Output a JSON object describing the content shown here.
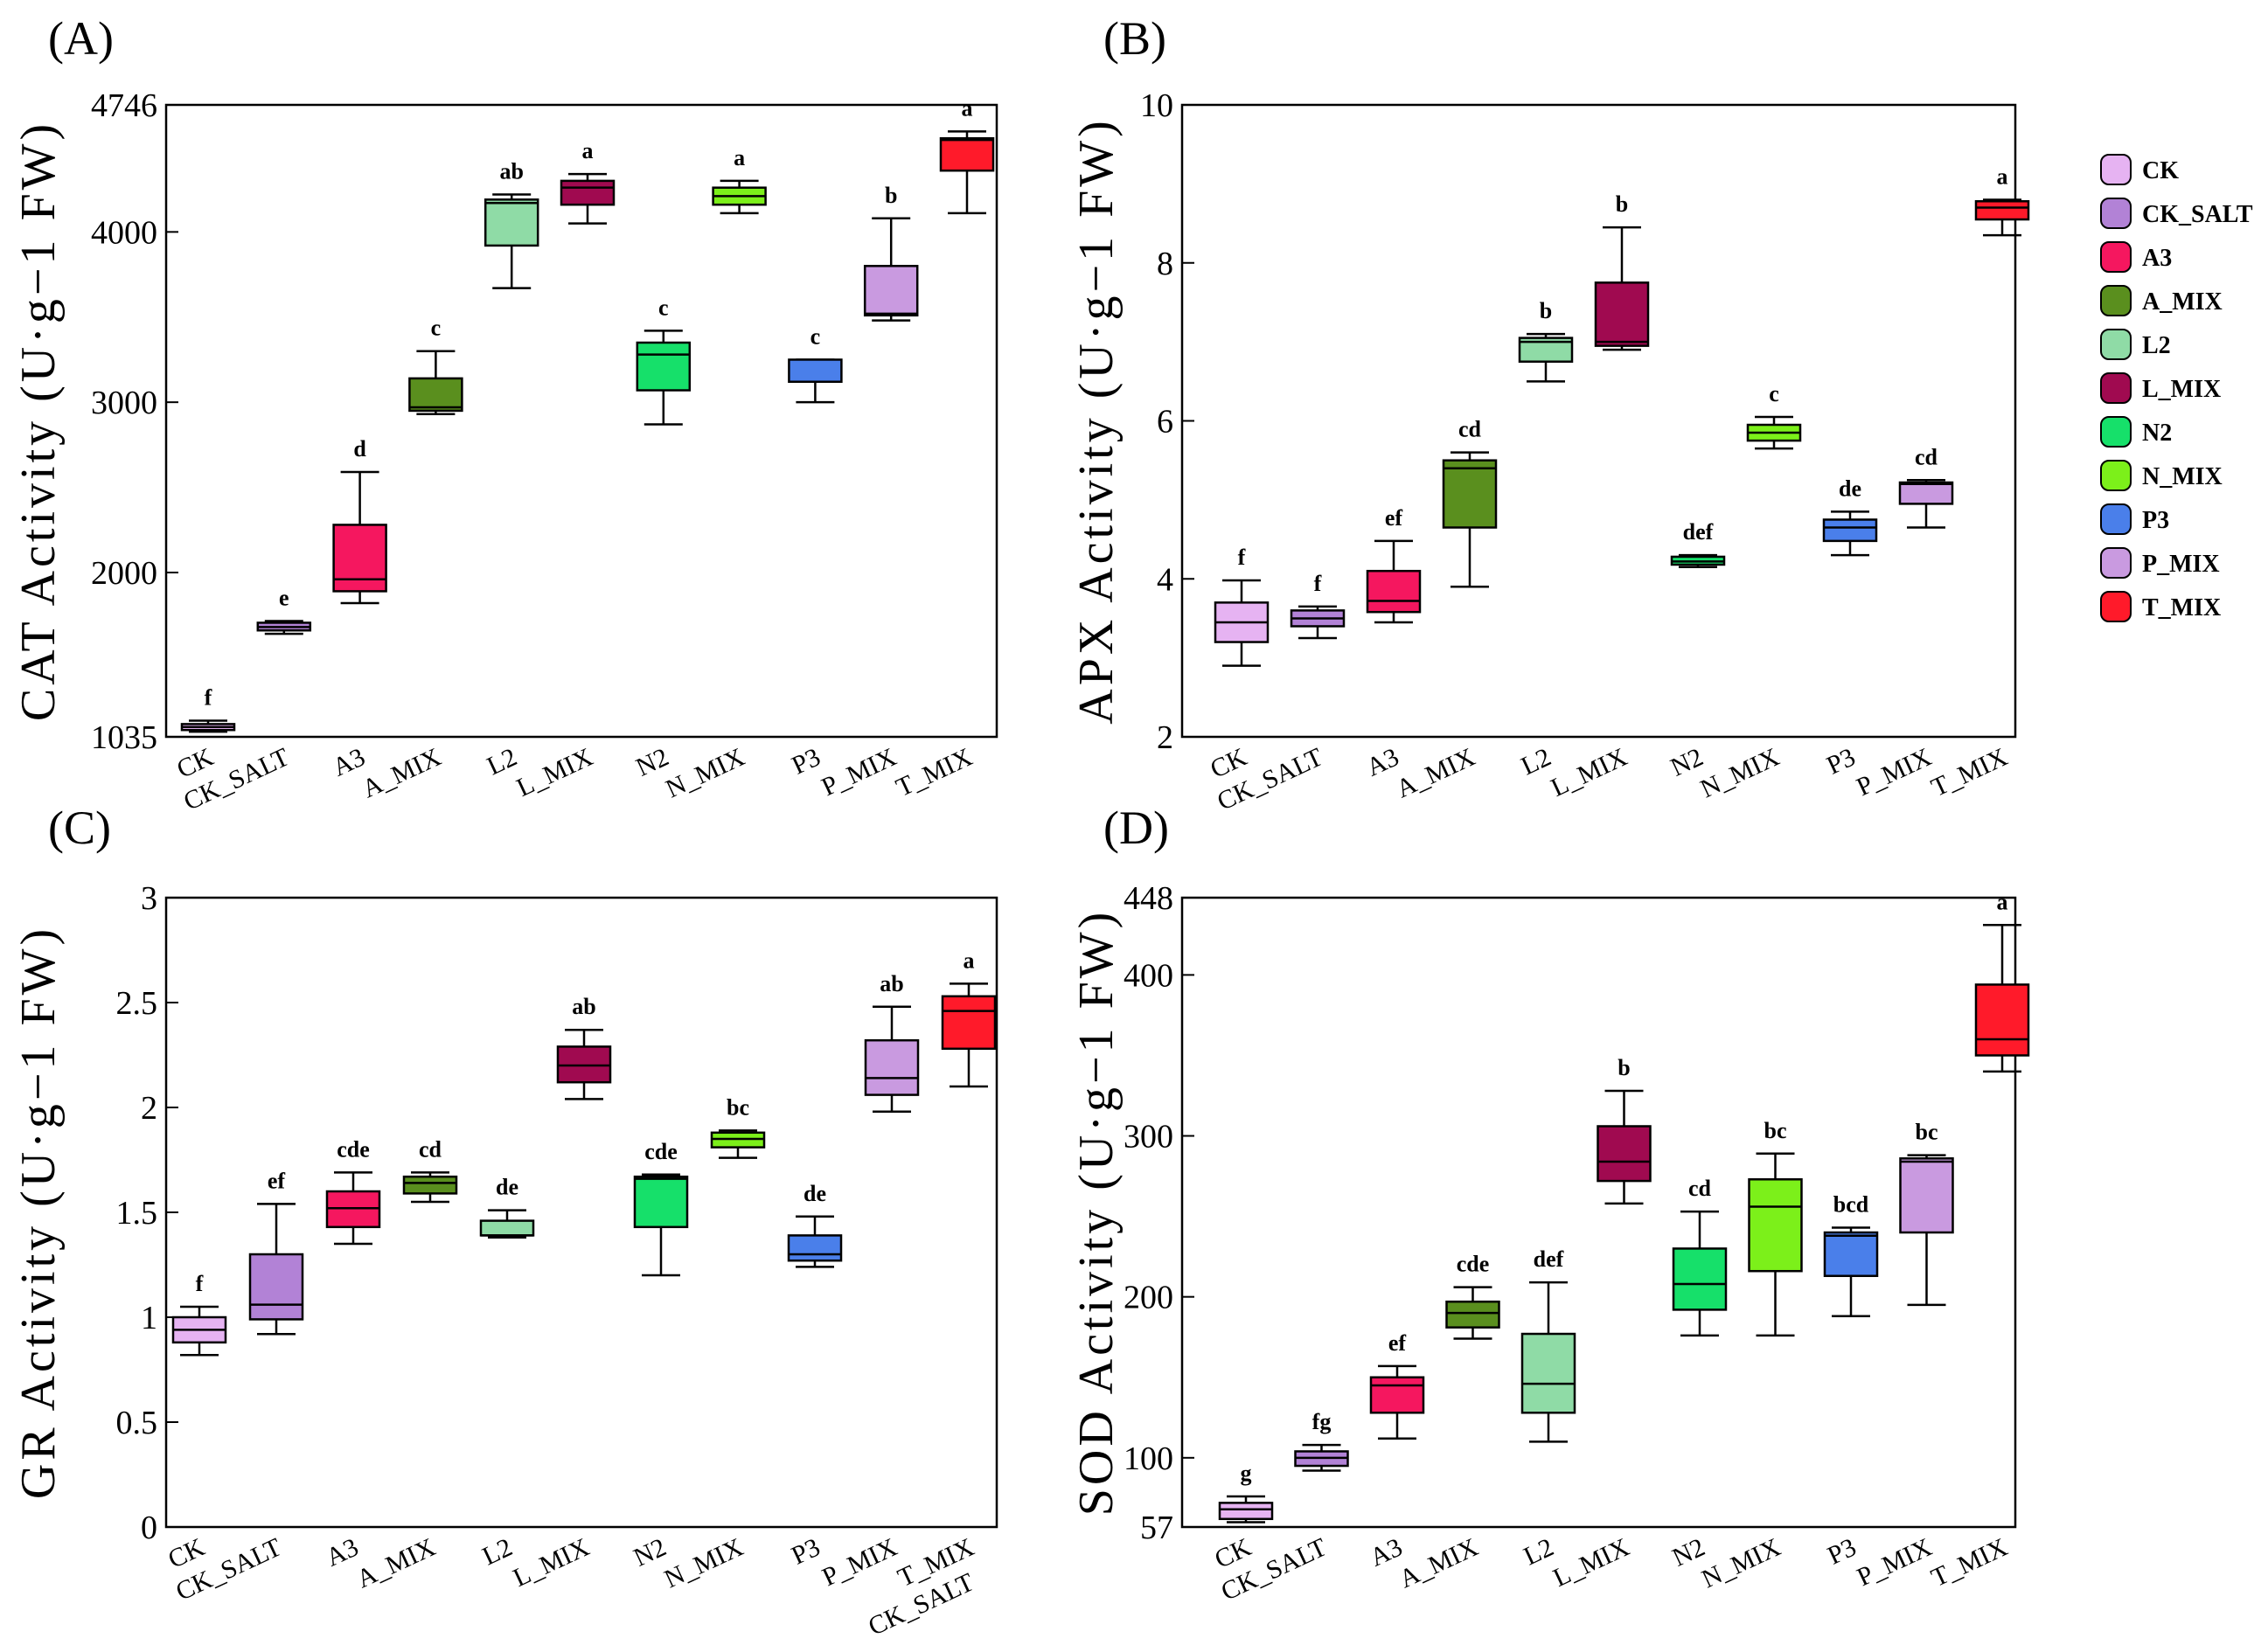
{
  "figure": {
    "title": ""
  },
  "legend": [
    {
      "name": "CK",
      "color": "#e6b3f2"
    },
    {
      "name": "CK_SALT",
      "color": "#b282d6"
    },
    {
      "name": "A3",
      "color": "#f5175f"
    },
    {
      "name": "A_MIX",
      "color": "#5a8f1e"
    },
    {
      "name": "L2",
      "color": "#8fdba6"
    },
    {
      "name": "L_MIX",
      "color": "#a00a50"
    },
    {
      "name": "N2",
      "color": "#16e06a"
    },
    {
      "name": "N_MIX",
      "color": "#7cf01a"
    },
    {
      "name": "P3",
      "color": "#4a7fea"
    },
    {
      "name": "P_MIX",
      "color": "#c99ae0"
    },
    {
      "name": "T_MIX",
      "color": "#ff1a2a"
    }
  ],
  "chart_data": [
    {
      "panel": "(A)",
      "type": "box",
      "ylabel": "CAT Activity (U·g−1 FW)",
      "ylim": [
        1035,
        4746
      ],
      "yticks": [
        1035,
        2000,
        3000,
        4000,
        4746
      ],
      "categories": [
        "CK",
        "CK_SALT",
        "A3",
        "A_MIX",
        "L2",
        "L_MIX",
        "N2",
        "N_MIX",
        "P3",
        "P_MIX",
        "T_MIX"
      ],
      "boxes": [
        {
          "min": 1065,
          "q1": 1075,
          "median": 1093,
          "q3": 1110,
          "max": 1130,
          "sig": "f"
        },
        {
          "min": 1640,
          "q1": 1660,
          "median": 1680,
          "q3": 1705,
          "max": 1715,
          "sig": "e"
        },
        {
          "min": 1820,
          "q1": 1890,
          "median": 1960,
          "q3": 2280,
          "max": 2590,
          "sig": "d"
        },
        {
          "min": 2930,
          "q1": 2950,
          "median": 2970,
          "q3": 3140,
          "max": 3300,
          "sig": "c"
        },
        {
          "min": 3670,
          "q1": 3920,
          "median": 4170,
          "q3": 4190,
          "max": 4220,
          "sig": "ab"
        },
        {
          "min": 4050,
          "q1": 4160,
          "median": 4260,
          "q3": 4300,
          "max": 4340,
          "sig": "a"
        },
        {
          "min": 2870,
          "q1": 3070,
          "median": 3280,
          "q3": 3350,
          "max": 3420,
          "sig": "c"
        },
        {
          "min": 4110,
          "q1": 4160,
          "median": 4210,
          "q3": 4260,
          "max": 4300,
          "sig": "a"
        },
        {
          "min": 3000,
          "q1": 3120,
          "median": 3120,
          "q3": 3250,
          "max": 3250,
          "sig": "c"
        },
        {
          "min": 3480,
          "q1": 3510,
          "median": 3520,
          "q3": 3800,
          "max": 4080,
          "sig": "b"
        },
        {
          "min": 4110,
          "q1": 4360,
          "median": 4540,
          "q3": 4550,
          "max": 4590,
          "sig": "a"
        }
      ]
    },
    {
      "panel": "(B)",
      "type": "box",
      "ylabel": "APX Activity (U·g−1 FW)",
      "ylim": [
        2,
        10
      ],
      "yticks": [
        2,
        4,
        6,
        8,
        10
      ],
      "categories": [
        "CK",
        "CK_SALT",
        "A3",
        "A_MIX",
        "L2",
        "L_MIX",
        "N2",
        "N_MIX",
        "P3",
        "P_MIX",
        "T_MIX"
      ],
      "boxes": [
        {
          "min": 2.9,
          "q1": 3.2,
          "median": 3.45,
          "q3": 3.7,
          "max": 3.98,
          "sig": "f"
        },
        {
          "min": 3.25,
          "q1": 3.4,
          "median": 3.5,
          "q3": 3.6,
          "max": 3.65,
          "sig": "f"
        },
        {
          "min": 3.45,
          "q1": 3.58,
          "median": 3.72,
          "q3": 4.1,
          "max": 4.48,
          "sig": "ef"
        },
        {
          "min": 3.9,
          "q1": 4.65,
          "median": 5.4,
          "q3": 5.5,
          "max": 5.6,
          "sig": "cd"
        },
        {
          "min": 6.5,
          "q1": 6.75,
          "median": 7.0,
          "q3": 7.05,
          "max": 7.1,
          "sig": "b"
        },
        {
          "min": 6.9,
          "q1": 6.95,
          "median": 7.0,
          "q3": 7.75,
          "max": 8.45,
          "sig": "b"
        },
        {
          "min": 4.15,
          "q1": 4.18,
          "median": 4.22,
          "q3": 4.28,
          "max": 4.3,
          "sig": "def"
        },
        {
          "min": 5.65,
          "q1": 5.75,
          "median": 5.85,
          "q3": 5.95,
          "max": 6.05,
          "sig": "c"
        },
        {
          "min": 4.3,
          "q1": 4.48,
          "median": 4.65,
          "q3": 4.75,
          "max": 4.85,
          "sig": "de"
        },
        {
          "min": 4.65,
          "q1": 4.95,
          "median": 5.2,
          "q3": 5.22,
          "max": 5.25,
          "sig": "cd"
        },
        {
          "min": 8.35,
          "q1": 8.55,
          "median": 8.7,
          "q3": 8.78,
          "max": 8.8,
          "sig": "a"
        }
      ]
    },
    {
      "panel": "(C)",
      "type": "box",
      "ylabel": "GR Activity (U·g−1 FW)",
      "ylim": [
        0,
        3
      ],
      "yticks": [
        0,
        0.5,
        1,
        1.5,
        2,
        2.5,
        3
      ],
      "ytick_labels": [
        "0",
        "0.5",
        "1",
        "1.5",
        "2",
        "2.5",
        "3"
      ],
      "categories": [
        "CK",
        "CK_SALT",
        "A3",
        "A_MIX",
        "L2",
        "L_MIX",
        "N2",
        "N_MIX",
        "P3",
        "P_MIX",
        "T_MIX"
      ],
      "extra_label": "CK_SALT",
      "boxes": [
        {
          "min": 0.82,
          "q1": 0.88,
          "median": 0.94,
          "q3": 1.0,
          "max": 1.05,
          "sig": "f"
        },
        {
          "min": 0.92,
          "q1": 0.99,
          "median": 1.06,
          "q3": 1.3,
          "max": 1.54,
          "sig": "ef"
        },
        {
          "min": 1.35,
          "q1": 1.43,
          "median": 1.52,
          "q3": 1.6,
          "max": 1.69,
          "sig": "cde"
        },
        {
          "min": 1.55,
          "q1": 1.59,
          "median": 1.64,
          "q3": 1.67,
          "max": 1.69,
          "sig": "cd"
        },
        {
          "min": 1.38,
          "q1": 1.39,
          "median": 1.39,
          "q3": 1.46,
          "max": 1.51,
          "sig": "de"
        },
        {
          "min": 2.04,
          "q1": 2.12,
          "median": 2.2,
          "q3": 2.29,
          "max": 2.37,
          "sig": "ab"
        },
        {
          "min": 1.2,
          "q1": 1.43,
          "median": 1.66,
          "q3": 1.67,
          "max": 1.68,
          "sig": "cde"
        },
        {
          "min": 1.76,
          "q1": 1.81,
          "median": 1.85,
          "q3": 1.88,
          "max": 1.89,
          "sig": "bc"
        },
        {
          "min": 1.24,
          "q1": 1.27,
          "median": 1.3,
          "q3": 1.39,
          "max": 1.48,
          "sig": "de"
        },
        {
          "min": 1.98,
          "q1": 2.06,
          "median": 2.14,
          "q3": 2.32,
          "max": 2.48,
          "sig": "ab"
        },
        {
          "min": 2.1,
          "q1": 2.28,
          "median": 2.46,
          "q3": 2.53,
          "max": 2.59,
          "sig": "a"
        }
      ]
    },
    {
      "panel": "(D)",
      "type": "box",
      "ylabel": "SOD Activity (U·g−1 FW)",
      "ylim": [
        57,
        448
      ],
      "yticks": [
        57,
        100,
        200,
        300,
        400,
        448
      ],
      "categories": [
        "CK",
        "CK_SALT",
        "A3",
        "A_MIX",
        "L2",
        "L_MIX",
        "N2",
        "N_MIX",
        "P3",
        "P_MIX",
        "T_MIX"
      ],
      "boxes": [
        {
          "min": 60,
          "q1": 62,
          "median": 68,
          "q3": 72,
          "max": 76,
          "sig": "g"
        },
        {
          "min": 92,
          "q1": 95,
          "median": 100,
          "q3": 104,
          "max": 108,
          "sig": "fg"
        },
        {
          "min": 112,
          "q1": 128,
          "median": 145,
          "q3": 150,
          "max": 157,
          "sig": "ef"
        },
        {
          "min": 174,
          "q1": 181,
          "median": 190,
          "q3": 197,
          "max": 206,
          "sig": "cde"
        },
        {
          "min": 110,
          "q1": 128,
          "median": 146,
          "q3": 177,
          "max": 209,
          "sig": "def"
        },
        {
          "min": 258,
          "q1": 272,
          "median": 284,
          "q3": 306,
          "max": 328,
          "sig": "b"
        },
        {
          "min": 176,
          "q1": 192,
          "median": 208,
          "q3": 230,
          "max": 253,
          "sig": "cd"
        },
        {
          "min": 176,
          "q1": 216,
          "median": 256,
          "q3": 273,
          "max": 289,
          "sig": "bc"
        },
        {
          "min": 188,
          "q1": 213,
          "median": 238,
          "q3": 240,
          "max": 243,
          "sig": "bcd"
        },
        {
          "min": 195,
          "q1": 240,
          "median": 284,
          "q3": 286,
          "max": 288,
          "sig": "bc"
        },
        {
          "min": 340,
          "q1": 350,
          "median": 360,
          "q3": 394,
          "max": 431,
          "sig": "a"
        }
      ]
    }
  ]
}
